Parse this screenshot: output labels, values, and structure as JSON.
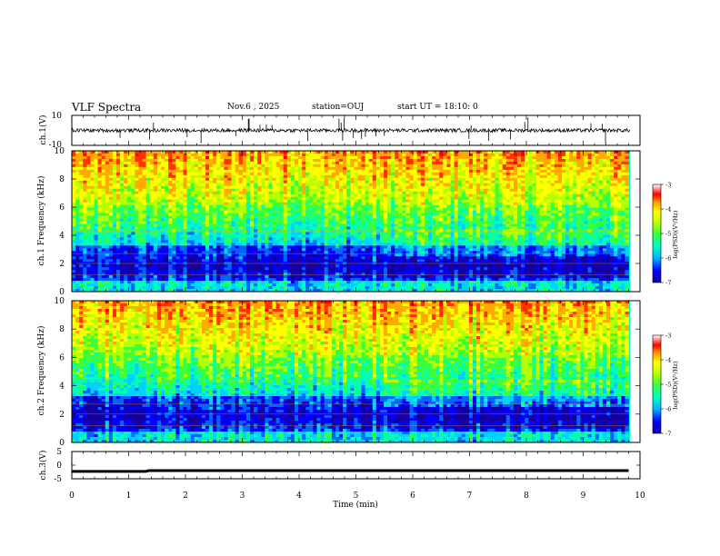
{
  "header": {
    "title": "VLF Spectra",
    "date": "Nov.6 , 2025",
    "station": "station=OUJ",
    "start": "start UT = 18:10: 0"
  },
  "colors": {
    "axis": "#000000",
    "background": "#ffffff",
    "colormap": [
      "#1400a0",
      "#0000ff",
      "#0064ff",
      "#00d2ff",
      "#00ffb4",
      "#3cff3c",
      "#b4ff00",
      "#ffff00",
      "#ffaa00",
      "#ff3200",
      "#ff0000",
      "#ffffff"
    ]
  },
  "chart_data": [
    {
      "id": "ch1-waveform",
      "type": "line",
      "ylabel": "ch.1(V)",
      "ylim": [
        -10,
        10
      ],
      "yticks": [
        "10",
        "-10"
      ],
      "xlim": [
        0,
        10
      ],
      "baseline": 0,
      "line_color": "#000000"
    },
    {
      "id": "ch1-spectrogram",
      "type": "heatmap",
      "ylabel": "ch.1 Frequency (kHz)",
      "ylim": [
        0,
        10
      ],
      "yticks": [
        "0",
        "2",
        "4",
        "6",
        "8",
        "10"
      ],
      "xlim": [
        0,
        9.8
      ],
      "colorbar": {
        "label": "log(PSD)(V²/Hz)",
        "range": [
          -7,
          -3
        ],
        "ticks": [
          "-3",
          "-4",
          "-5",
          "-6",
          "-7"
        ]
      }
    },
    {
      "id": "ch2-spectrogram",
      "type": "heatmap",
      "ylabel": "ch.2 Frequency (kHz)",
      "ylim": [
        0,
        10
      ],
      "yticks": [
        "0",
        "2",
        "4",
        "6",
        "8",
        "10"
      ],
      "xlim": [
        0,
        9.8
      ],
      "colorbar": {
        "label": "log(PSD)(V²/Hz)",
        "range": [
          -7,
          -3
        ],
        "ticks": [
          "-3",
          "-4",
          "-5",
          "-6",
          "-7"
        ]
      }
    },
    {
      "id": "ch3-waveform",
      "type": "line",
      "ylabel": "ch.3(V)",
      "ylim": [
        -5,
        5
      ],
      "yticks": [
        "5",
        "0",
        "-5"
      ],
      "xlim": [
        0,
        10
      ],
      "x": [
        0,
        1.3,
        1.35,
        9.8
      ],
      "y": [
        -2.3,
        -2.3,
        -2.0,
        -2.0
      ]
    },
    {
      "id": "time-axis",
      "type": "line",
      "xlabel": "Time (min)",
      "xlim": [
        0,
        10
      ],
      "xticks": [
        "0",
        "1",
        "2",
        "3",
        "4",
        "5",
        "6",
        "7",
        "8",
        "9",
        "10"
      ]
    }
  ]
}
